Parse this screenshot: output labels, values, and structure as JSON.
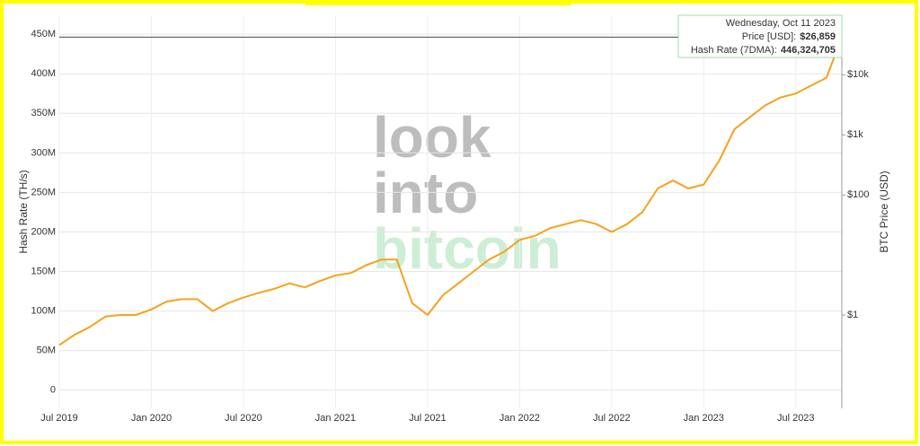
{
  "chart_data": {
    "type": "line",
    "y_label": "Hash Rate (TH/s)",
    "y2_label": "BTC Price (USD)",
    "color": "#f7a21b",
    "grid": true,
    "x": [
      "2019-07",
      "2019-08",
      "2019-09",
      "2019-10",
      "2019-11",
      "2019-12",
      "2020-01",
      "2020-02",
      "2020-03",
      "2020-04",
      "2020-05",
      "2020-06",
      "2020-07",
      "2020-08",
      "2020-09",
      "2020-10",
      "2020-11",
      "2020-12",
      "2021-01",
      "2021-02",
      "2021-03",
      "2021-04",
      "2021-05",
      "2021-06",
      "2021-07",
      "2021-08",
      "2021-09",
      "2021-10",
      "2021-11",
      "2021-12",
      "2022-01",
      "2022-02",
      "2022-03",
      "2022-04",
      "2022-05",
      "2022-06",
      "2022-07",
      "2022-08",
      "2022-09",
      "2022-10",
      "2022-11",
      "2022-12",
      "2023-01",
      "2023-02",
      "2023-03",
      "2023-04",
      "2023-05",
      "2023-06",
      "2023-07",
      "2023-08",
      "2023-09",
      "2023-10"
    ],
    "values": [
      57000000,
      70000000,
      80000000,
      93000000,
      95000000,
      95000000,
      102000000,
      112000000,
      115000000,
      115000000,
      100000000,
      110000000,
      117000000,
      123000000,
      128000000,
      135000000,
      130000000,
      138000000,
      145000000,
      148000000,
      158000000,
      165000000,
      165000000,
      110000000,
      95000000,
      120000000,
      135000000,
      150000000,
      165000000,
      175000000,
      190000000,
      195000000,
      205000000,
      210000000,
      215000000,
      210000000,
      200000000,
      210000000,
      225000000,
      255000000,
      265000000,
      255000000,
      260000000,
      290000000,
      330000000,
      345000000,
      360000000,
      370000000,
      375000000,
      385000000,
      395000000,
      446324705
    ],
    "xlim": [
      "2019-07",
      "2023-10"
    ],
    "xticks": [
      {
        "value": "2019-07",
        "label": "Jul 2019"
      },
      {
        "value": "2020-01",
        "label": "Jan 2020"
      },
      {
        "value": "2020-07",
        "label": "Jul 2020"
      },
      {
        "value": "2021-01",
        "label": "Jan 2021"
      },
      {
        "value": "2021-07",
        "label": "Jul 2021"
      },
      {
        "value": "2022-01",
        "label": "Jan 2022"
      },
      {
        "value": "2022-07",
        "label": "Jul 2022"
      },
      {
        "value": "2023-01",
        "label": "Jan 2023"
      },
      {
        "value": "2023-07",
        "label": "Jul 2023"
      }
    ],
    "ylim": [
      -23000000,
      474000000
    ],
    "yticks": [
      0,
      {
        "value": 50000000,
        "label": "50M"
      },
      {
        "value": 100000000,
        "label": "100M"
      },
      {
        "value": 150000000,
        "label": "150M"
      },
      {
        "value": 200000000,
        "label": "200M"
      },
      {
        "value": 250000000,
        "label": "250M"
      },
      {
        "value": 300000000,
        "label": "300M"
      },
      {
        "value": 350000000,
        "label": "350M"
      },
      {
        "value": 400000000,
        "label": "400M"
      },
      {
        "value": 450000000,
        "label": "450M"
      }
    ],
    "y2_log": true,
    "y2lim": [
      0.028,
      98000
    ],
    "y2ticks": [
      {
        "value": 1,
        "label": "$1"
      },
      {
        "value": 100,
        "label": "$100"
      },
      {
        "value": 1000,
        "label": "$1k"
      },
      {
        "value": 10000,
        "label": "$10k"
      }
    ],
    "tooltip": {
      "date": "Wednesday, Oct 11 2023",
      "price_label": "Price [USD]:",
      "price": "$26,859",
      "hash_label": "Hash Rate (7DMA):",
      "hash": "446,324,705"
    },
    "watermark": [
      "look",
      "into",
      "bitcoin"
    ]
  }
}
